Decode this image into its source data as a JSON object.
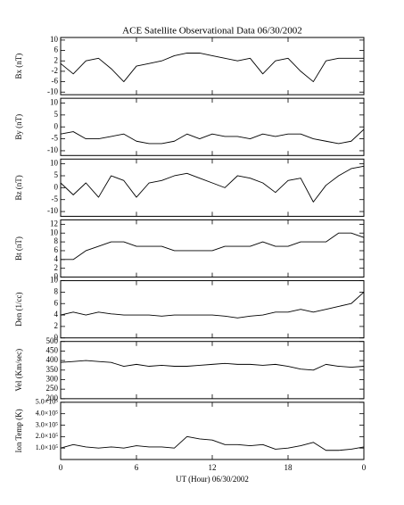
{
  "chart_data": [
    {
      "type": "line",
      "title": "ACE Satellite Observational Data   06/30/2002",
      "ylabel": "Bx (nT)",
      "x": [
        0,
        1,
        2,
        3,
        4,
        5,
        6,
        7,
        8,
        9,
        10,
        11,
        12,
        13,
        14,
        15,
        16,
        17,
        18,
        19,
        20,
        21,
        22,
        23,
        24
      ],
      "xlim": [
        0,
        24
      ],
      "series": [
        {
          "color": "#000000",
          "values": [
            1,
            -3,
            2,
            3,
            -1,
            -6,
            0,
            1,
            2,
            4,
            5,
            5,
            4,
            3,
            2,
            3,
            -3,
            2,
            3,
            -2,
            -6,
            2,
            3,
            3,
            3
          ]
        }
      ],
      "ylim": [
        -11,
        11
      ],
      "yticks": [
        -10,
        -6,
        -2,
        2,
        6,
        10
      ]
    },
    {
      "type": "line",
      "ylabel": "By (nT)",
      "x": [
        0,
        1,
        2,
        3,
        4,
        5,
        6,
        7,
        8,
        9,
        10,
        11,
        12,
        13,
        14,
        15,
        16,
        17,
        18,
        19,
        20,
        21,
        22,
        23,
        24
      ],
      "xlim": [
        0,
        24
      ],
      "series": [
        {
          "color": "#000000",
          "values": [
            -3,
            -2,
            -5,
            -5,
            -4,
            -3,
            -6,
            -7,
            -7,
            -6,
            -3,
            -5,
            -3,
            -4,
            -4,
            -5,
            -3,
            -4,
            -3,
            -3,
            -5,
            -6,
            -7,
            -6,
            -1
          ]
        }
      ],
      "ylim": [
        -12,
        12
      ],
      "yticks": [
        -10,
        -5,
        0,
        5,
        10
      ]
    },
    {
      "type": "line",
      "ylabel": "Bz (nT)",
      "x": [
        0,
        1,
        2,
        3,
        4,
        5,
        6,
        7,
        8,
        9,
        10,
        11,
        12,
        13,
        14,
        15,
        16,
        17,
        18,
        19,
        20,
        21,
        22,
        23,
        24
      ],
      "xlim": [
        0,
        24
      ],
      "series": [
        {
          "color": "#000000",
          "values": [
            2,
            -3,
            2,
            -4,
            5,
            3,
            -4,
            2,
            3,
            5,
            6,
            4,
            2,
            0,
            5,
            4,
            2,
            -2,
            3,
            4,
            -6,
            1,
            5,
            8,
            9
          ]
        }
      ],
      "ylim": [
        -12,
        12
      ],
      "yticks": [
        -10,
        -5,
        0,
        5,
        10
      ]
    },
    {
      "type": "line",
      "ylabel": "Bt (nT)",
      "x": [
        0,
        1,
        2,
        3,
        4,
        5,
        6,
        7,
        8,
        9,
        10,
        11,
        12,
        13,
        14,
        15,
        16,
        17,
        18,
        19,
        20,
        21,
        22,
        23,
        24
      ],
      "xlim": [
        0,
        24
      ],
      "series": [
        {
          "color": "#000000",
          "values": [
            4,
            4,
            6,
            7,
            8,
            8,
            7,
            7,
            7,
            6,
            6,
            6,
            6,
            7,
            7,
            7,
            8,
            7,
            7,
            8,
            8,
            8,
            10,
            10,
            9
          ]
        }
      ],
      "ylim": [
        0,
        13
      ],
      "yticks": [
        0,
        2,
        4,
        6,
        8,
        10,
        12
      ]
    },
    {
      "type": "line",
      "ylabel": "Den (1/cc)",
      "x": [
        0,
        1,
        2,
        3,
        4,
        5,
        6,
        7,
        8,
        9,
        10,
        11,
        12,
        13,
        14,
        15,
        16,
        17,
        18,
        19,
        20,
        21,
        22,
        23,
        24
      ],
      "xlim": [
        0,
        24
      ],
      "series": [
        {
          "color": "#000000",
          "values": [
            4,
            4.5,
            4,
            4.5,
            4.2,
            4,
            4,
            4,
            3.8,
            4,
            4,
            4,
            4,
            3.8,
            3.5,
            3.8,
            4,
            4.5,
            4.5,
            5,
            4.5,
            5,
            5.5,
            6,
            8
          ]
        }
      ],
      "ylim": [
        0,
        10
      ],
      "yticks": [
        0,
        2,
        4,
        6,
        8,
        10
      ]
    },
    {
      "type": "line",
      "ylabel": "Vel (Km/sec)",
      "x": [
        0,
        1,
        2,
        3,
        4,
        5,
        6,
        7,
        8,
        9,
        10,
        11,
        12,
        13,
        14,
        15,
        16,
        17,
        18,
        19,
        20,
        21,
        22,
        23,
        24
      ],
      "xlim": [
        0,
        24
      ],
      "series": [
        {
          "color": "#000000",
          "values": [
            390,
            395,
            400,
            395,
            390,
            370,
            380,
            370,
            375,
            370,
            370,
            375,
            380,
            385,
            380,
            380,
            375,
            380,
            370,
            355,
            350,
            380,
            370,
            365,
            370
          ]
        }
      ],
      "ylim": [
        200,
        500
      ],
      "yticks": [
        200,
        250,
        300,
        350,
        400,
        450,
        500
      ]
    },
    {
      "type": "line",
      "ylabel": "Ion Temp (K)",
      "xlabel": "UT (Hour)   06/30/2002",
      "x": [
        0,
        1,
        2,
        3,
        4,
        5,
        6,
        7,
        8,
        9,
        10,
        11,
        12,
        13,
        14,
        15,
        16,
        17,
        18,
        19,
        20,
        21,
        22,
        23,
        24
      ],
      "xlim": [
        0,
        24
      ],
      "xticks": [
        0,
        6,
        12,
        18,
        {
          "value": 24,
          "label": "0"
        }
      ],
      "series": [
        {
          "color": "#000000",
          "values": [
            100000,
            130000,
            110000,
            100000,
            110000,
            100000,
            120000,
            110000,
            110000,
            100000,
            200000,
            180000,
            170000,
            130000,
            130000,
            120000,
            130000,
            90000,
            100000,
            120000,
            150000,
            80000,
            80000,
            90000,
            110000
          ]
        }
      ],
      "ylim": [
        0,
        500000
      ],
      "yticks": [
        {
          "value": 100000,
          "label": "1.0×10⁵"
        },
        {
          "value": 200000,
          "label": "2.0×10⁵"
        },
        {
          "value": 300000,
          "label": "3.0×10⁵"
        },
        {
          "value": 400000,
          "label": "4.0×10⁵"
        },
        {
          "value": 500000,
          "label": "5.0×10⁵"
        }
      ]
    }
  ]
}
